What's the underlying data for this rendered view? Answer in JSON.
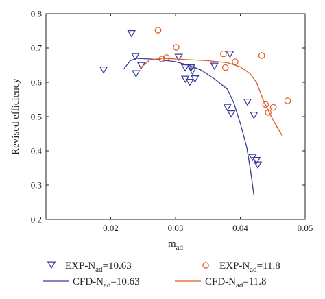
{
  "chart_data": {
    "type": "scatter",
    "xlabel": "m",
    "xlabel_sub": "ad",
    "ylabel": "Revised efficiency",
    "xlim": [
      0.01,
      0.05
    ],
    "ylim": [
      0.2,
      0.8
    ],
    "xticks": [
      "0.02",
      "0.03",
      "0.04",
      "0.05"
    ],
    "yticks": [
      "0.2",
      "0.3",
      "0.4",
      "0.5",
      "0.6",
      "0.7",
      "0.8"
    ],
    "grid": false,
    "legend_placement": "bottom",
    "colors": {
      "blue": "#3a3a9a",
      "orange": "#e05a24",
      "axis": "#222222"
    },
    "series": [
      {
        "name": "EXP-N",
        "name_sub": "ad",
        "name_suffix": "=10.63",
        "kind": "scatter",
        "marker": "triangle-down",
        "color": "#3a3a9a",
        "points": [
          [
            0.0189,
            0.637
          ],
          [
            0.0232,
            0.743
          ],
          [
            0.0238,
            0.676
          ],
          [
            0.0239,
            0.626
          ],
          [
            0.0247,
            0.65
          ],
          [
            0.0305,
            0.674
          ],
          [
            0.0315,
            0.643
          ],
          [
            0.0315,
            0.61
          ],
          [
            0.0322,
            0.601
          ],
          [
            0.0324,
            0.643
          ],
          [
            0.0326,
            0.634
          ],
          [
            0.033,
            0.611
          ],
          [
            0.036,
            0.648
          ],
          [
            0.038,
            0.528
          ],
          [
            0.0384,
            0.683
          ],
          [
            0.0386,
            0.509
          ],
          [
            0.0411,
            0.543
          ],
          [
            0.0419,
            0.382
          ],
          [
            0.0421,
            0.505
          ],
          [
            0.0425,
            0.373
          ],
          [
            0.0427,
            0.36
          ]
        ]
      },
      {
        "name": "EXP-N",
        "name_sub": "ad",
        "name_suffix": "=11.8",
        "kind": "scatter",
        "marker": "circle",
        "color": "#e05a24",
        "points": [
          [
            0.0273,
            0.752
          ],
          [
            0.0279,
            0.668
          ],
          [
            0.0286,
            0.672
          ],
          [
            0.0301,
            0.702
          ],
          [
            0.0374,
            0.683
          ],
          [
            0.0377,
            0.643
          ],
          [
            0.0392,
            0.66
          ],
          [
            0.0433,
            0.678
          ],
          [
            0.0439,
            0.535
          ],
          [
            0.0443,
            0.512
          ],
          [
            0.0451,
            0.527
          ],
          [
            0.0473,
            0.546
          ]
        ]
      },
      {
        "name": "CFD-N",
        "name_sub": "ad",
        "name_suffix": "=10.63",
        "kind": "line",
        "color": "#3a3a9a",
        "points": [
          [
            0.022,
            0.638
          ],
          [
            0.023,
            0.663
          ],
          [
            0.024,
            0.67
          ],
          [
            0.027,
            0.667
          ],
          [
            0.03,
            0.66
          ],
          [
            0.032,
            0.65
          ],
          [
            0.034,
            0.635
          ],
          [
            0.036,
            0.61
          ],
          [
            0.038,
            0.58
          ],
          [
            0.039,
            0.54
          ],
          [
            0.04,
            0.48
          ],
          [
            0.041,
            0.41
          ],
          [
            0.0416,
            0.34
          ],
          [
            0.0421,
            0.27
          ]
        ]
      },
      {
        "name": "CFD-N",
        "name_sub": "ad",
        "name_suffix": "=11.8",
        "kind": "line",
        "color": "#e05a24",
        "points": [
          [
            0.0245,
            0.64
          ],
          [
            0.026,
            0.665
          ],
          [
            0.028,
            0.67
          ],
          [
            0.03,
            0.668
          ],
          [
            0.035,
            0.663
          ],
          [
            0.038,
            0.657
          ],
          [
            0.04,
            0.645
          ],
          [
            0.0415,
            0.625
          ],
          [
            0.0425,
            0.6
          ],
          [
            0.0435,
            0.55
          ],
          [
            0.0445,
            0.51
          ],
          [
            0.0455,
            0.475
          ],
          [
            0.0465,
            0.443
          ]
        ]
      }
    ]
  }
}
